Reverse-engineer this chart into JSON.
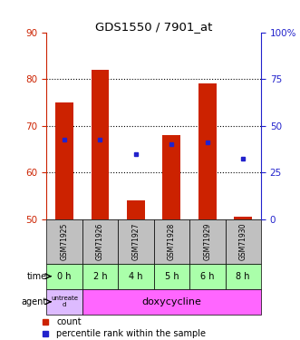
{
  "title": "GDS1550 / 7901_at",
  "samples": [
    "GSM71925",
    "GSM71926",
    "GSM71927",
    "GSM71928",
    "GSM71929",
    "GSM71930"
  ],
  "times": [
    "0 h",
    "2 h",
    "4 h",
    "5 h",
    "6 h",
    "8 h"
  ],
  "bar_bottom": 50,
  "bar_tops": [
    75,
    82,
    54,
    68,
    79,
    50.5
  ],
  "blue_dot_values": [
    67,
    67,
    64,
    66,
    66.5,
    63
  ],
  "ylim_left": [
    50,
    90
  ],
  "ylim_right": [
    0,
    100
  ],
  "yticks_left": [
    50,
    60,
    70,
    80,
    90
  ],
  "yticks_right": [
    0,
    25,
    50,
    75,
    100
  ],
  "yticklabels_right": [
    "0",
    "25",
    "50",
    "75",
    "100%"
  ],
  "bar_color": "#cc2200",
  "dot_color": "#2222cc",
  "grid_color": "#000000",
  "axis_color_left": "#cc2200",
  "axis_color_right": "#2222cc",
  "sample_bg_color": "#c0c0c0",
  "time_bg_color": "#aaffaa",
  "agent_color_untreated": "#ddbbff",
  "agent_color_doxy": "#ff66ff",
  "bar_width": 0.5
}
